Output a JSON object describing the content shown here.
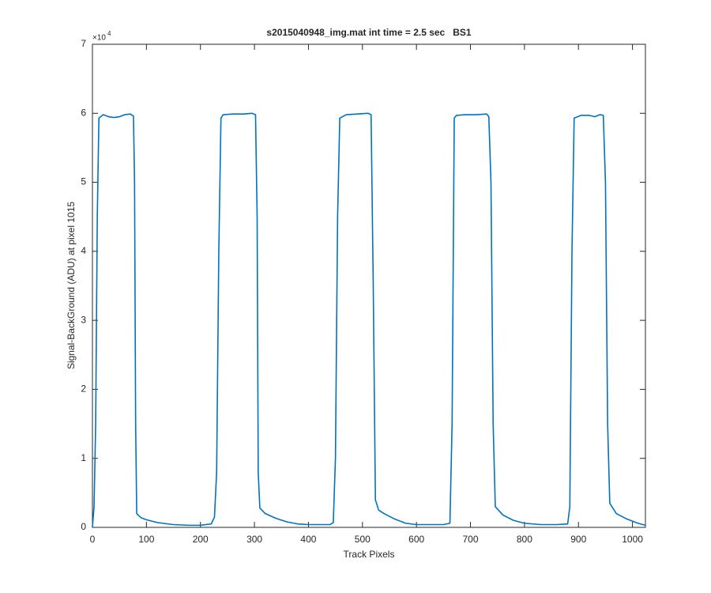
{
  "chart_data": {
    "type": "line",
    "title": "s2015040948_img.mat int time = 2.5 sec   BS1",
    "xlabel": "Track Pixels",
    "ylabel": "Signal-BackGround (ADU) at pixel 1015",
    "exponent_label": "×10",
    "exponent_power": "4",
    "xlim": [
      0,
      1024
    ],
    "ylim": [
      0,
      70000
    ],
    "xticks": [
      0,
      100,
      200,
      300,
      400,
      500,
      600,
      700,
      800,
      900,
      1000
    ],
    "yticks": [
      0,
      {
        "value": 10000,
        "label": "1"
      },
      {
        "value": 20000,
        "label": "2"
      },
      {
        "value": 30000,
        "label": "3"
      },
      {
        "value": 40000,
        "label": "4"
      },
      {
        "value": 50000,
        "label": "5"
      },
      {
        "value": 60000,
        "label": "6"
      },
      {
        "value": 70000,
        "label": "7"
      }
    ],
    "grid": false,
    "series": [
      {
        "color": "#0072bd",
        "x": [
          0,
          3,
          6,
          9,
          12,
          20,
          30,
          40,
          50,
          60,
          70,
          76,
          78,
          80,
          82,
          90,
          100,
          120,
          150,
          180,
          200,
          220,
          226,
          230,
          234,
          238,
          242,
          260,
          280,
          295,
          302,
          305,
          307,
          310,
          320,
          340,
          360,
          380,
          400,
          420,
          440,
          446,
          450,
          454,
          458,
          470,
          490,
          510,
          516,
          520,
          524,
          530,
          540,
          560,
          580,
          600,
          620,
          650,
          662,
          666,
          670,
          674,
          690,
          710,
          730,
          734,
          738,
          742,
          746,
          760,
          780,
          800,
          830,
          860,
          880,
          884,
          888,
          892,
          905,
          920,
          930,
          940,
          946,
          950,
          954,
          958,
          970,
          990,
          1010,
          1024
        ],
        "values": [
          0,
          3000,
          15000,
          45000,
          59300,
          59800,
          59500,
          59400,
          59500,
          59800,
          59900,
          59600,
          50000,
          15000,
          2000,
          1400,
          1100,
          700,
          400,
          300,
          300,
          500,
          1500,
          8000,
          40000,
          59300,
          59800,
          59900,
          59900,
          60000,
          59800,
          45000,
          8000,
          2800,
          2000,
          1300,
          800,
          500,
          400,
          400,
          400,
          700,
          10000,
          45000,
          59300,
          59800,
          59900,
          60000,
          59800,
          35000,
          4000,
          2500,
          2000,
          1200,
          600,
          400,
          400,
          400,
          600,
          15000,
          59300,
          59700,
          59800,
          59800,
          59900,
          59500,
          50000,
          15000,
          3000,
          1800,
          1000,
          600,
          400,
          400,
          500,
          3000,
          40000,
          59300,
          59700,
          59700,
          59500,
          59800,
          59700,
          50000,
          15000,
          3500,
          2000,
          1200,
          600,
          300
        ]
      }
    ]
  }
}
